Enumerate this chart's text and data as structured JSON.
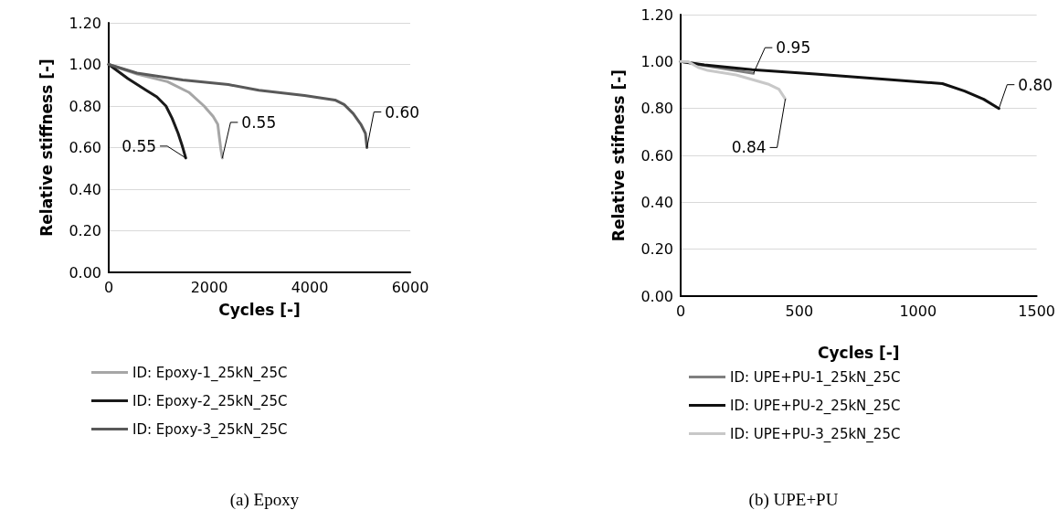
{
  "chart_data": [
    {
      "type": "line",
      "title": "(a) Epoxy",
      "xlabel": "Cycles [-]",
      "ylabel": "Relative stiffness [-]",
      "xlim": [
        0,
        6000
      ],
      "xticks": [
        0,
        2000,
        4000,
        6000
      ],
      "ylim": [
        0,
        1.2
      ],
      "yticks": [
        {
          "value": 0,
          "label": "0.00"
        },
        {
          "value": 0.2,
          "label": "0.20"
        },
        {
          "value": 0.4,
          "label": "0.40"
        },
        {
          "value": 0.6,
          "label": "0.60"
        },
        {
          "value": 0.8,
          "label": "0.80"
        },
        {
          "value": 1.0,
          "label": "1.00"
        },
        {
          "value": 1.2,
          "label": "1.20"
        }
      ],
      "grid": "y",
      "legend": "bottom",
      "marker": "none",
      "line_style": "solid",
      "series": [
        {
          "name": "ID: Epoxy-1_25kN_25C",
          "color": "#a6a6a6",
          "x": [
            0,
            564,
            1170,
            1594,
            1897,
            2079,
            2170,
            2200,
            2230,
            2261
          ],
          "values": [
            1.0,
            0.954,
            0.917,
            0.866,
            0.8,
            0.749,
            0.712,
            0.653,
            0.595,
            0.55
          ]
        },
        {
          "name": "ID: Epoxy-2_25kN_25C",
          "color": "#1a1a1a",
          "x": [
            0,
            382,
            745,
            958,
            1139,
            1261,
            1382,
            1461,
            1533
          ],
          "values": [
            1.0,
            0.932,
            0.876,
            0.844,
            0.8,
            0.741,
            0.668,
            0.61,
            0.55
          ]
        },
        {
          "name": "ID: Epoxy-3_25kN_25C",
          "color": "#595959",
          "x": [
            0,
            564,
            1473,
            2382,
            2988,
            3897,
            4503,
            4685,
            4867,
            5018,
            5109,
            5139
          ],
          "values": [
            1.0,
            0.958,
            0.925,
            0.903,
            0.876,
            0.851,
            0.829,
            0.807,
            0.763,
            0.712,
            0.668,
            0.6
          ]
        }
      ],
      "annotations": [
        {
          "text": "0.55",
          "x": 1533,
          "y": 0.55
        },
        {
          "text": "0.55",
          "x": 2261,
          "y": 0.55
        },
        {
          "text": "0.60",
          "x": 5139,
          "y": 0.6
        }
      ]
    },
    {
      "type": "line",
      "title": "(b) UPE+PU",
      "xlabel": "Cycles [-]",
      "ylabel": "Relative stifness [-]",
      "xlim": [
        0,
        1500
      ],
      "xticks": [
        0,
        500,
        1000,
        1500
      ],
      "ylim": [
        0,
        1.2
      ],
      "yticks": [
        {
          "value": 0,
          "label": "0.00"
        },
        {
          "value": 0.2,
          "label": "0.20"
        },
        {
          "value": 0.4,
          "label": "0.40"
        },
        {
          "value": 0.6,
          "label": "0.60"
        },
        {
          "value": 0.8,
          "label": "0.80"
        },
        {
          "value": 1.0,
          "label": "1.00"
        },
        {
          "value": 1.2,
          "label": "1.20"
        }
      ],
      "grid": "y",
      "legend": "bottom",
      "marker": "none",
      "line_style": "solid",
      "series": [
        {
          "name": "ID: UPE+PU-1_25kN_25C",
          "color": "#808080",
          "x": [
            0,
            150,
            307
          ],
          "values": [
            1.0,
            0.975,
            0.95
          ]
        },
        {
          "name": "ID: UPE+PU-2_25kN_25C",
          "color": "#111111",
          "x": [
            0,
            100,
            301,
            568,
            836,
            1103,
            1196,
            1277,
            1341
          ],
          "values": [
            1.0,
            0.986,
            0.965,
            0.947,
            0.926,
            0.906,
            0.874,
            0.839,
            0.8
          ]
        },
        {
          "name": "ID: UPE+PU-3_25kN_25C",
          "color": "#c8c8c8",
          "x": [
            0,
            33,
            74,
            114,
            234,
            368,
            414,
            441
          ],
          "values": [
            1.0,
            0.999,
            0.975,
            0.962,
            0.943,
            0.904,
            0.882,
            0.84
          ]
        }
      ],
      "annotations": [
        {
          "text": "0.95",
          "x": 307,
          "y": 0.95
        },
        {
          "text": "0.84",
          "x": 441,
          "y": 0.84
        },
        {
          "text": "0.80",
          "x": 1341,
          "y": 0.8
        }
      ]
    }
  ]
}
